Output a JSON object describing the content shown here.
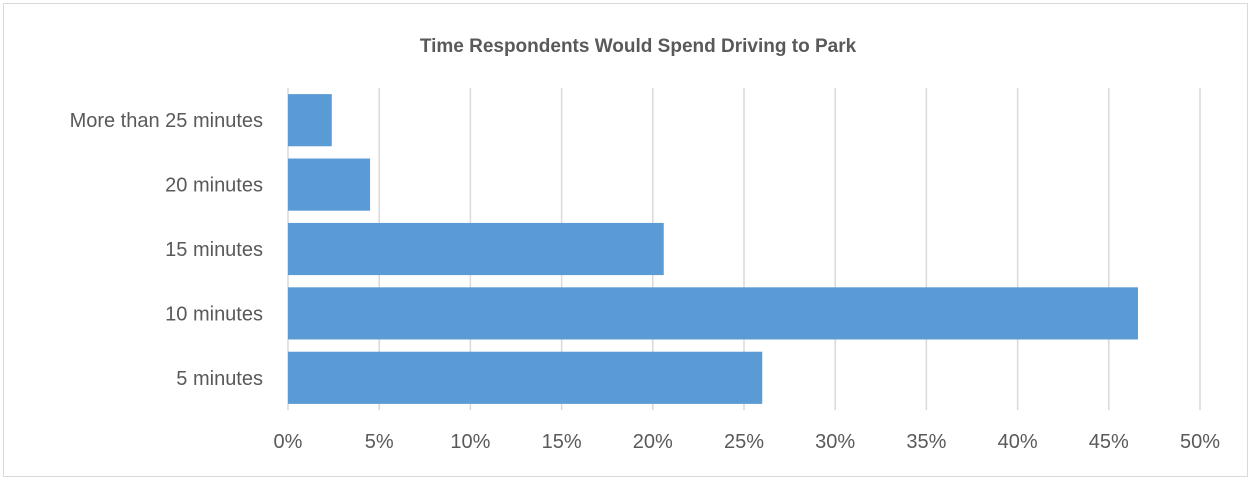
{
  "chart_data": {
    "type": "bar",
    "orientation": "horizontal",
    "title": "Time Respondents Would Spend Driving to Park",
    "xlabel": "",
    "ylabel": "",
    "categories": [
      "More than 25 minutes",
      "20 minutes",
      "15 minutes",
      "10 minutes",
      "5 minutes"
    ],
    "values": [
      2.4,
      4.5,
      20.6,
      46.6,
      26.0
    ],
    "xlim": [
      0,
      50
    ],
    "x_ticks": [
      0,
      5,
      10,
      15,
      20,
      25,
      30,
      35,
      40,
      45,
      50
    ],
    "x_tick_labels": [
      "0%",
      "5%",
      "10%",
      "15%",
      "20%",
      "25%",
      "30%",
      "35%",
      "40%",
      "45%",
      "50%"
    ],
    "grid": "vertical",
    "legend": "none",
    "bar_color": "#5b9bd5",
    "gridline_color": "#d9d9d9"
  }
}
